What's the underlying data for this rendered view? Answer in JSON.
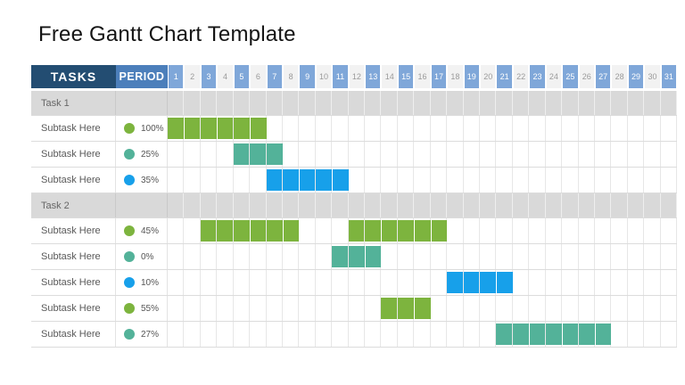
{
  "title": "Free Gantt Chart Template",
  "table": {
    "tasks_header": "TASKS",
    "period_header": "PERIOD",
    "day_count": 31,
    "days": [
      1,
      2,
      3,
      4,
      5,
      6,
      7,
      8,
      9,
      10,
      11,
      12,
      13,
      14,
      15,
      16,
      17,
      18,
      19,
      20,
      21,
      22,
      23,
      24,
      25,
      26,
      27,
      28,
      29,
      30,
      31
    ],
    "rows": [
      {
        "type": "section",
        "label": "Task 1"
      },
      {
        "type": "task",
        "label": "Subtask Here",
        "progress": "100%",
        "color": "green",
        "bars": [
          {
            "start": 1,
            "end": 6
          }
        ]
      },
      {
        "type": "task",
        "label": "Subtask Here",
        "progress": "25%",
        "color": "teal",
        "bars": [
          {
            "start": 5,
            "end": 7
          }
        ]
      },
      {
        "type": "task",
        "label": "Subtask Here",
        "progress": "35%",
        "color": "blue",
        "bars": [
          {
            "start": 7,
            "end": 11
          }
        ]
      },
      {
        "type": "section",
        "label": "Task 2"
      },
      {
        "type": "task",
        "label": "Subtask Here",
        "progress": "45%",
        "color": "green",
        "bars": [
          {
            "start": 3,
            "end": 8
          },
          {
            "start": 12,
            "end": 17
          }
        ]
      },
      {
        "type": "task",
        "label": "Subtask Here",
        "progress": "0%",
        "color": "teal",
        "bars": [
          {
            "start": 11,
            "end": 13
          }
        ]
      },
      {
        "type": "task",
        "label": "Subtask Here",
        "progress": "10%",
        "color": "blue",
        "bars": [
          {
            "start": 18,
            "end": 21
          }
        ]
      },
      {
        "type": "task",
        "label": "Subtask Here",
        "progress": "55%",
        "color": "green",
        "bars": [
          {
            "start": 14,
            "end": 16
          }
        ]
      },
      {
        "type": "task",
        "label": "Subtask Here",
        "progress": "27%",
        "color": "teal",
        "bars": [
          {
            "start": 21,
            "end": 27
          }
        ]
      }
    ]
  },
  "colors": {
    "header_navy": "#234D72",
    "header_period_blue": "#4C7FBB",
    "day_odd_blue": "#7FA7D9",
    "day_even_gray": "#F2F2F2",
    "section_gray": "#D9D9D9",
    "green": "#7DB43E",
    "teal": "#53B299",
    "blue": "#17A0EA"
  },
  "chart_data": {
    "type": "bar",
    "subtype": "gantt",
    "title": "Free Gantt Chart Template",
    "xlabel": "PERIOD (days)",
    "x_ticks": [
      1,
      2,
      3,
      4,
      5,
      6,
      7,
      8,
      9,
      10,
      11,
      12,
      13,
      14,
      15,
      16,
      17,
      18,
      19,
      20,
      21,
      22,
      23,
      24,
      25,
      26,
      27,
      28,
      29,
      30,
      31
    ],
    "xlim": [
      1,
      31
    ],
    "grid": true,
    "tasks": [
      {
        "group": "Task 1",
        "name": "Subtask Here",
        "progress_pct": 100,
        "color": "green",
        "spans": [
          [
            1,
            6
          ]
        ]
      },
      {
        "group": "Task 1",
        "name": "Subtask Here",
        "progress_pct": 25,
        "color": "teal",
        "spans": [
          [
            5,
            7
          ]
        ]
      },
      {
        "group": "Task 1",
        "name": "Subtask Here",
        "progress_pct": 35,
        "color": "blue",
        "spans": [
          [
            7,
            11
          ]
        ]
      },
      {
        "group": "Task 2",
        "name": "Subtask Here",
        "progress_pct": 45,
        "color": "green",
        "spans": [
          [
            3,
            8
          ],
          [
            12,
            17
          ]
        ]
      },
      {
        "group": "Task 2",
        "name": "Subtask Here",
        "progress_pct": 0,
        "color": "teal",
        "spans": [
          [
            11,
            13
          ]
        ]
      },
      {
        "group": "Task 2",
        "name": "Subtask Here",
        "progress_pct": 10,
        "color": "blue",
        "spans": [
          [
            18,
            21
          ]
        ]
      },
      {
        "group": "Task 2",
        "name": "Subtask Here",
        "progress_pct": 55,
        "color": "green",
        "spans": [
          [
            14,
            16
          ]
        ]
      },
      {
        "group": "Task 2",
        "name": "Subtask Here",
        "progress_pct": 27,
        "color": "teal",
        "spans": [
          [
            21,
            27
          ]
        ]
      }
    ]
  }
}
